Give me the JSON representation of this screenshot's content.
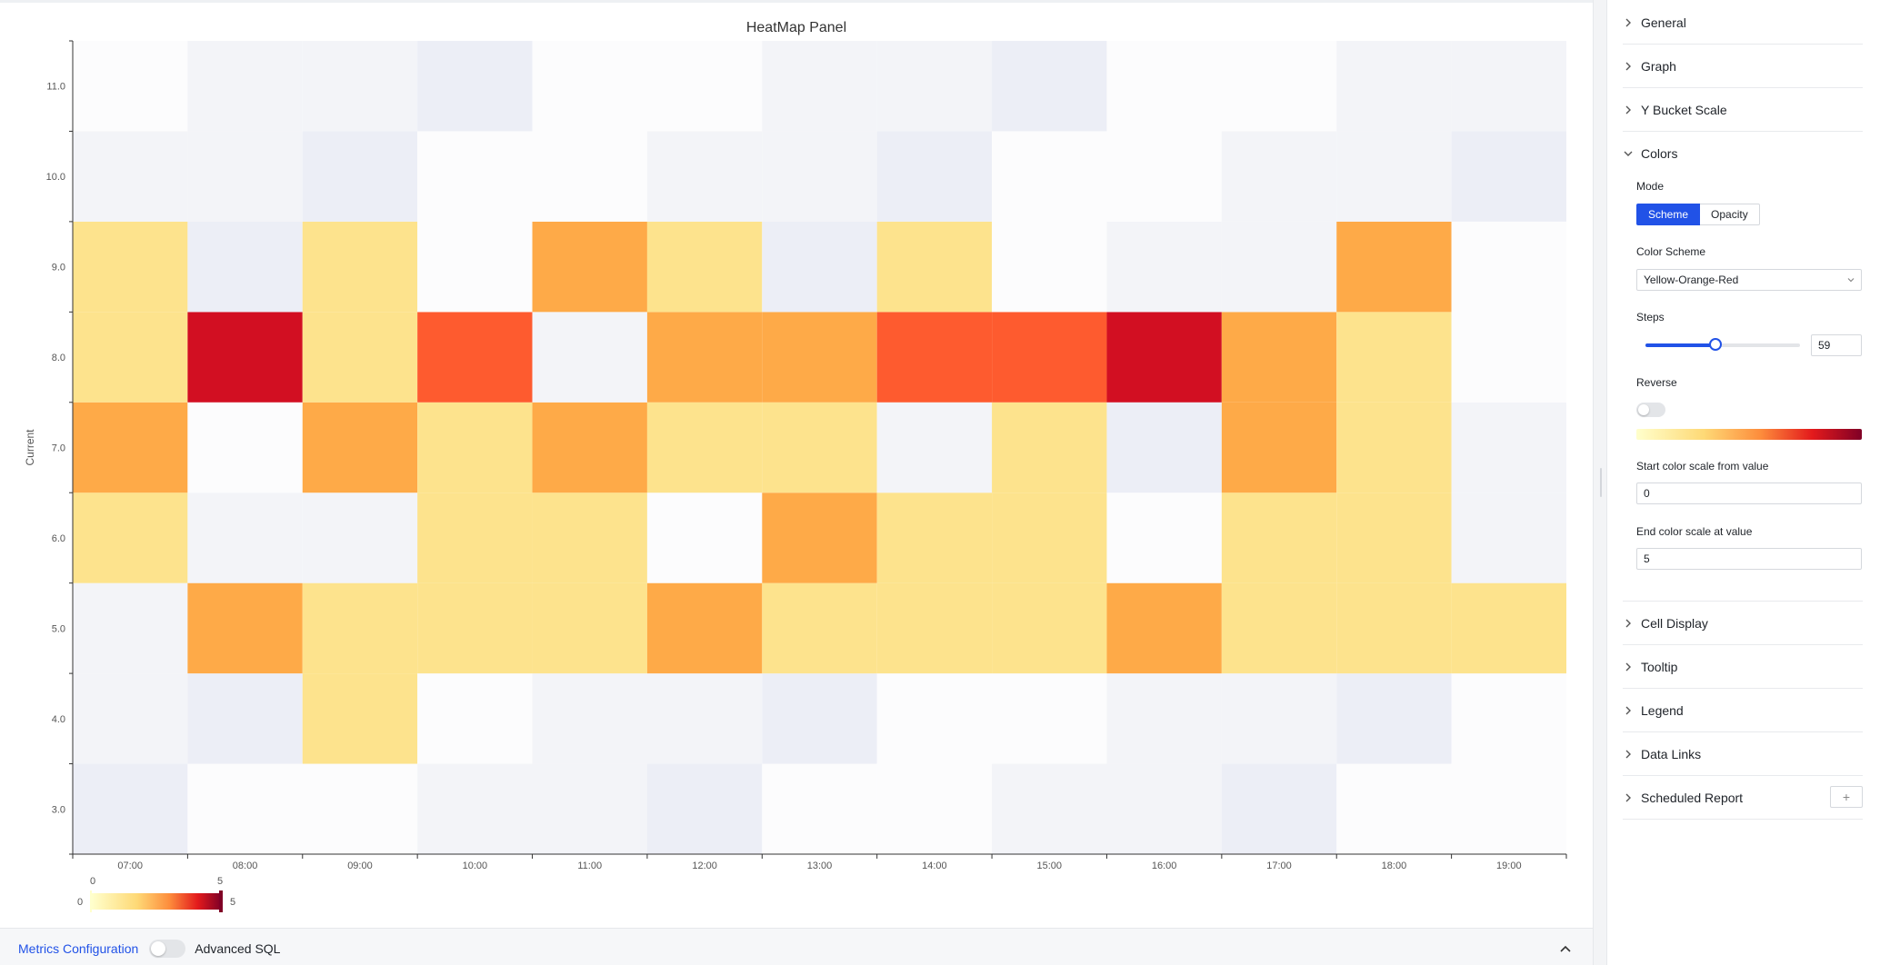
{
  "chart_data": {
    "type": "heatmap",
    "title": "HeatMap Panel",
    "ylabel": "Current",
    "xlabel": "",
    "x": [
      "07:00",
      "08:00",
      "09:00",
      "10:00",
      "11:00",
      "12:00",
      "13:00",
      "14:00",
      "15:00",
      "16:00",
      "17:00",
      "18:00",
      "19:00"
    ],
    "y": [
      "3.0",
      "4.0",
      "5.0",
      "6.0",
      "7.0",
      "8.0",
      "9.0",
      "10.0",
      "11.0"
    ],
    "values": [
      [
        0,
        0,
        0,
        0,
        0,
        0,
        0,
        0,
        0,
        0,
        0,
        0,
        0
      ],
      [
        0,
        0,
        1,
        0,
        0,
        0,
        0,
        0,
        0,
        0,
        0,
        0,
        0
      ],
      [
        0,
        2,
        1,
        1,
        1,
        2,
        1,
        1,
        1,
        2,
        1,
        1,
        1
      ],
      [
        1,
        0,
        0,
        1,
        1,
        0,
        2,
        1,
        1,
        0,
        1,
        1,
        0
      ],
      [
        2,
        0,
        2,
        1,
        2,
        1,
        1,
        0,
        1,
        0,
        2,
        1,
        0
      ],
      [
        1,
        5,
        1,
        4,
        0,
        2,
        2,
        4,
        4,
        5,
        2,
        1,
        0
      ],
      [
        1,
        0,
        1,
        0,
        2,
        1,
        0,
        1,
        0,
        0,
        0,
        2,
        0
      ],
      [
        0,
        0,
        0,
        0,
        0,
        0,
        0,
        0,
        0,
        0,
        0,
        0,
        0
      ],
      [
        0,
        0,
        0,
        0,
        0,
        0,
        0,
        0,
        0,
        0,
        0,
        0,
        0
      ]
    ],
    "color_scale": {
      "min": 0,
      "max": 5,
      "scheme": "Yellow-Orange-Red"
    },
    "legend": {
      "min_label": "0",
      "max_label": "5",
      "handle_min": "0",
      "handle_max": "5"
    },
    "colors": {
      "empty_a": "#fcfcfd",
      "empty_b": "#f3f4f8",
      "empty_c": "#eceef6",
      "v1": "#fde38d",
      "v2": "#feaa48",
      "v4": "#fe5b2f",
      "v5": "#d20f22"
    }
  },
  "bottom_bar": {
    "metrics_link": "Metrics Configuration",
    "advanced_sql_label": "Advanced SQL"
  },
  "panel": {
    "sections_top": [
      "General",
      "Graph",
      "Y Bucket Scale"
    ],
    "colors_section": {
      "title": "Colors",
      "mode_label": "Mode",
      "mode_options": [
        "Scheme",
        "Opacity"
      ],
      "mode_selected": "Scheme",
      "scheme_label": "Color Scheme",
      "scheme_value": "Yellow-Orange-Red",
      "steps_label": "Steps",
      "steps_value": "59",
      "steps_min": 2,
      "steps_max": 128,
      "reverse_label": "Reverse",
      "reverse_on": false,
      "start_label": "Start color scale from value",
      "start_value": "0",
      "end_label": "End color scale at value",
      "end_value": "5"
    },
    "sections_bottom": [
      "Cell Display",
      "Tooltip",
      "Legend",
      "Data Links",
      "Scheduled Report"
    ],
    "add_symbol": "+"
  }
}
